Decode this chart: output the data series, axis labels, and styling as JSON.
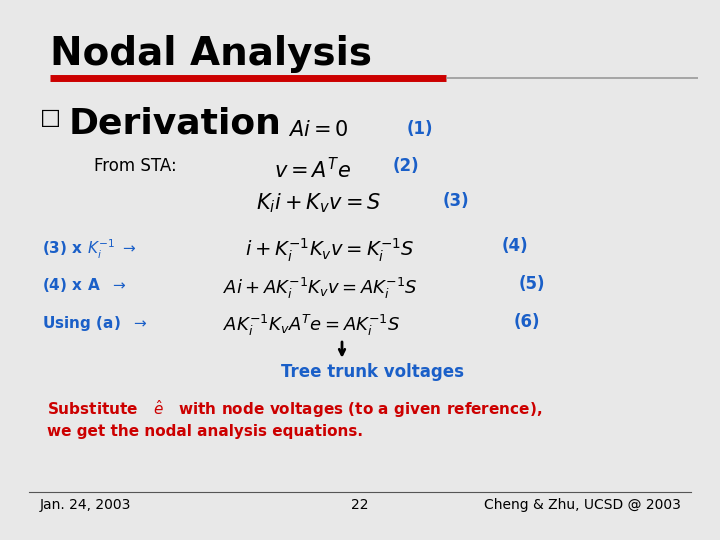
{
  "title": "Nodal Analysis",
  "title_color": "#000000",
  "title_fontsize": 28,
  "red_bar_color": "#cc0000",
  "background_color": "#e8e8e8",
  "bullet_label": "Derivation",
  "bullet_fontsize": 26,
  "bullet_color": "#000000",
  "from_sta": "From STA:",
  "eq1_label": "(1)",
  "eq2_label": "(2)",
  "eq3_label": "(3)",
  "eq4_label": "(4)",
  "eq5_label": "(5)",
  "eq6_label": "(6)",
  "tree_trunk": "Tree trunk voltages",
  "tree_trunk_color": "#1a5fc8",
  "substitute_line2": "we get the nodal analysis equations.",
  "substitute_color": "#cc0000",
  "footer_left": "Jan. 24, 2003",
  "footer_center": "22",
  "footer_right": "Cheng & Zhu, UCSD @ 2003",
  "footer_color": "#000000",
  "footer_fontsize": 10,
  "label_color": "#1a5fc8",
  "step_color": "#1a5fc8",
  "eq_color": "#000000",
  "eq_fontsize": 13,
  "label_fontsize": 12
}
